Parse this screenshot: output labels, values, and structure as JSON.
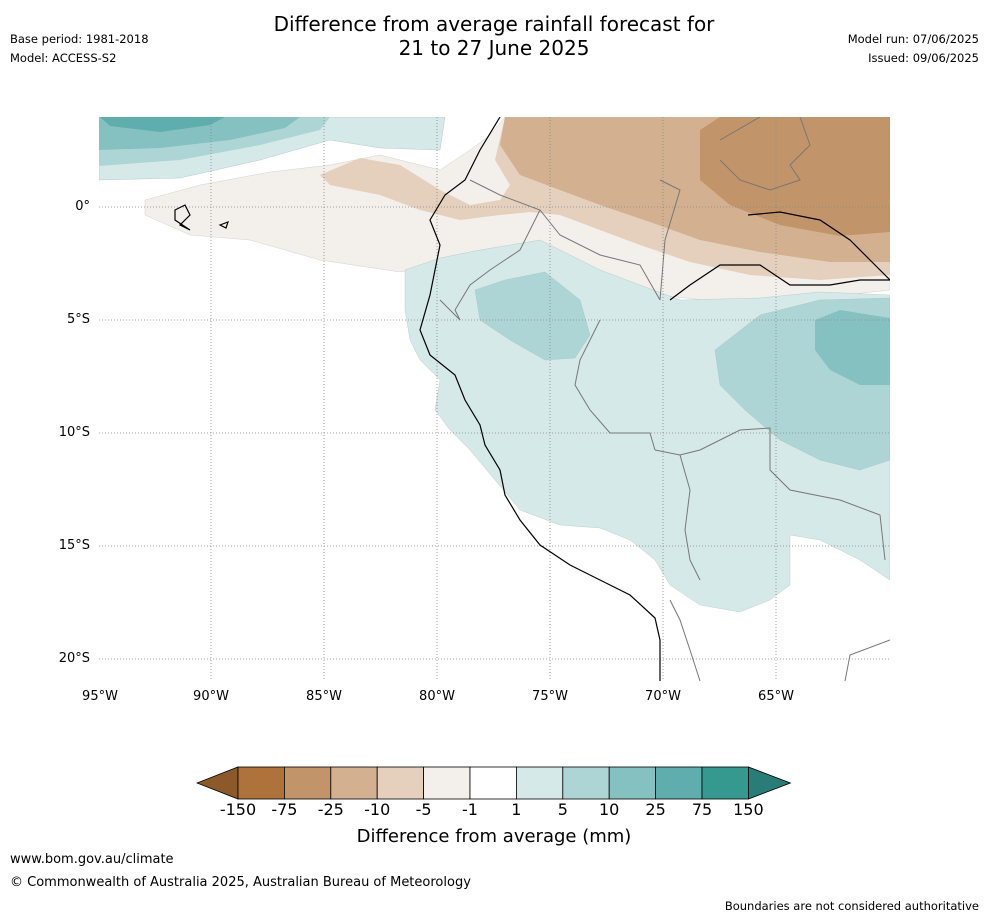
{
  "header": {
    "title_line1": "Difference from average rainfall forecast for",
    "title_line2": "21 to 27 June 2025",
    "base_period": "Base period: 1981-2018",
    "model": "Model: ACCESS-S2",
    "model_run": "Model run: 07/06/2025",
    "issued": "Issued: 09/06/2025"
  },
  "map": {
    "lat_labels": [
      "0°",
      "5°S",
      "10°S",
      "15°S",
      "20°S"
    ],
    "lon_labels": [
      "95°W",
      "90°W",
      "85°W",
      "80°W",
      "75°W",
      "70°W",
      "65°W"
    ]
  },
  "legend": {
    "ticks": [
      "-150",
      "-75",
      "-25",
      "-10",
      "-5",
      "-1",
      "1",
      "5",
      "10",
      "25",
      "75",
      "150"
    ],
    "colors": [
      "#8c5a2a",
      "#ae723b",
      "#c29469",
      "#d3b090",
      "#e4d0bd",
      "#f3efea",
      "#ffffff",
      "#d5e9e8",
      "#aed5d5",
      "#85c1c0",
      "#5fadac",
      "#35998f",
      "#2a7c79"
    ],
    "label": "Difference from average (mm)"
  },
  "footer": {
    "url": "www.bom.gov.au/climate",
    "copyright": "© Commonwealth of Australia 2025, Australian Bureau of Meteorology",
    "disclaimer": "Boundaries are not considered authoritative"
  }
}
